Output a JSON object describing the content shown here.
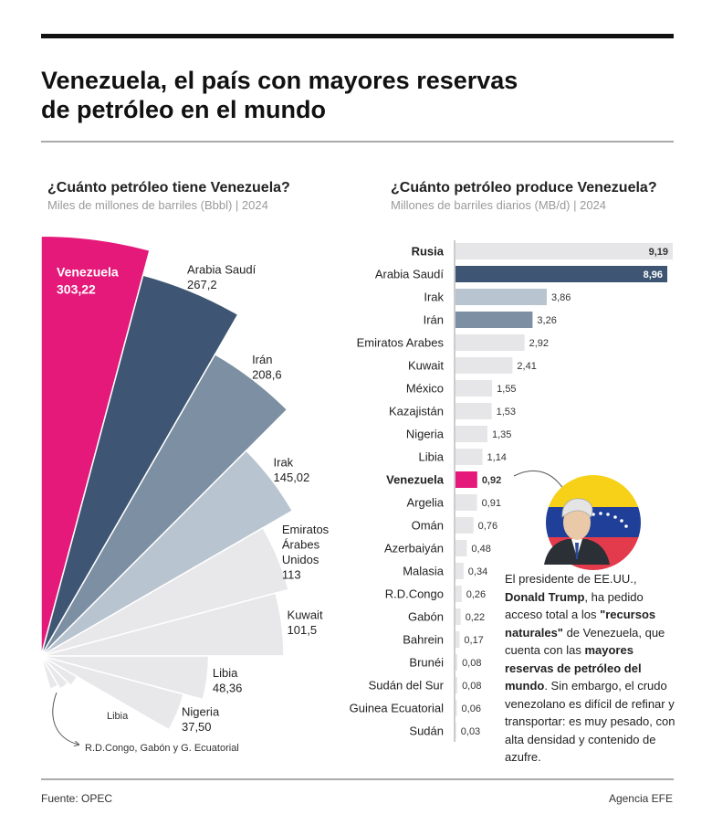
{
  "header": {
    "title": [
      "Venezuela, el país con mayores reservas",
      "de petróleo en el mundo"
    ]
  },
  "chart_data": [
    {
      "type": "rose",
      "title": "¿Cuánto petróleo tiene Venezuela?",
      "subtitle": "Miles de millones de barriles (Bbbl) | 2024",
      "categories": [
        "Venezuela",
        "Arabia Saudí",
        "Irán",
        "Irak",
        "Emiratos Árabes Unidos",
        "Kuwait",
        "Libia",
        "Nigeria",
        null,
        null,
        null
      ],
      "values": [
        303.22,
        267.2,
        208.6,
        145.02,
        113,
        101.5,
        48.36,
        37.5,
        3,
        2.5,
        2
      ],
      "value_labels": [
        "303,22",
        "267,2",
        "208,6",
        "145,02",
        "113",
        "101,5",
        "48,36",
        "37,50",
        null,
        null,
        null
      ],
      "colors": [
        "#e5197a",
        "#3e5673",
        "#7d8fa3",
        "#b8c4cf",
        "#e8e8ea",
        "#e8e8ea",
        "#e8e8ea",
        "#e8e8ea",
        "#e8e8ea",
        "#e8e8ea",
        "#e8e8ea"
      ],
      "annotations": [
        "Libia",
        "R.D.Congo, Gabón y G. Ecuatorial"
      ]
    },
    {
      "type": "bar",
      "orientation": "horizontal",
      "title": "¿Cuánto petróleo produce Venezuela?",
      "subtitle": "Millones de barriles diarios (MB/d) | 2024",
      "categories": [
        "Rusia",
        "Arabia Saudí",
        "Irak",
        "Irán",
        "Emiratos Arabes",
        "Kuwait",
        "México",
        "Kazajistán",
        "Nigeria",
        "Libia",
        "Venezuela",
        "Argelia",
        "Omán",
        "Azerbaiyán",
        "Malasia",
        "R.D.Congo",
        "Gabón",
        "Bahrein",
        "Brunéi",
        "Sudán del Sur",
        "Guinea Ecuatorial",
        "Sudán"
      ],
      "values": [
        9.19,
        8.96,
        3.86,
        3.26,
        2.92,
        2.41,
        1.55,
        1.53,
        1.35,
        1.14,
        0.92,
        0.91,
        0.76,
        0.48,
        0.34,
        0.26,
        0.22,
        0.17,
        0.08,
        0.08,
        0.06,
        0.03
      ],
      "value_labels": [
        "9,19",
        "8,96",
        "3,86",
        "3,26",
        "2,92",
        "2,41",
        "1,55",
        "1,53",
        "1,35",
        "1,14",
        "0,92",
        "0,91",
        "0,76",
        "0,48",
        "0,34",
        "0,26",
        "0,22",
        "0,17",
        "0,08",
        "0,08",
        "0,06",
        "0,03"
      ],
      "colors": [
        "#e6e6e8",
        "#3e5673",
        "#b8c4cf",
        "#7d8fa3",
        "#e6e6e8",
        "#e6e6e8",
        "#e6e6e8",
        "#e6e6e8",
        "#e6e6e8",
        "#e6e6e8",
        "#e5197a",
        "#e6e6e8",
        "#e6e6e8",
        "#e6e6e8",
        "#e6e6e8",
        "#e6e6e8",
        "#e6e6e8",
        "#e6e6e8",
        "#e6e6e8",
        "#e6e6e8",
        "#e6e6e8",
        "#e6e6e8"
      ],
      "emphasis": [
        0,
        10
      ]
    }
  ],
  "annotation": {
    "segments": [
      {
        "text": "El presidente de EE.UU., ",
        "bold": false
      },
      {
        "text": "Donald Trump",
        "bold": true
      },
      {
        "text": ", ha pedido acceso total a los ",
        "bold": false
      },
      {
        "text": "\"recursos naturales\"",
        "bold": true
      },
      {
        "text": " de Venezuela, que cuenta con las ",
        "bold": false
      },
      {
        "text": "mayores reservas de petróleo del mundo",
        "bold": true
      },
      {
        "text": ". Sin embargo, el crudo venezolano es difícil de refinar y transportar: es muy pesado, con alta densidad y contenido de azufre.",
        "bold": false
      }
    ]
  },
  "footer": {
    "source": "Fuente: OPEC",
    "credit": "Agencia EFE"
  }
}
